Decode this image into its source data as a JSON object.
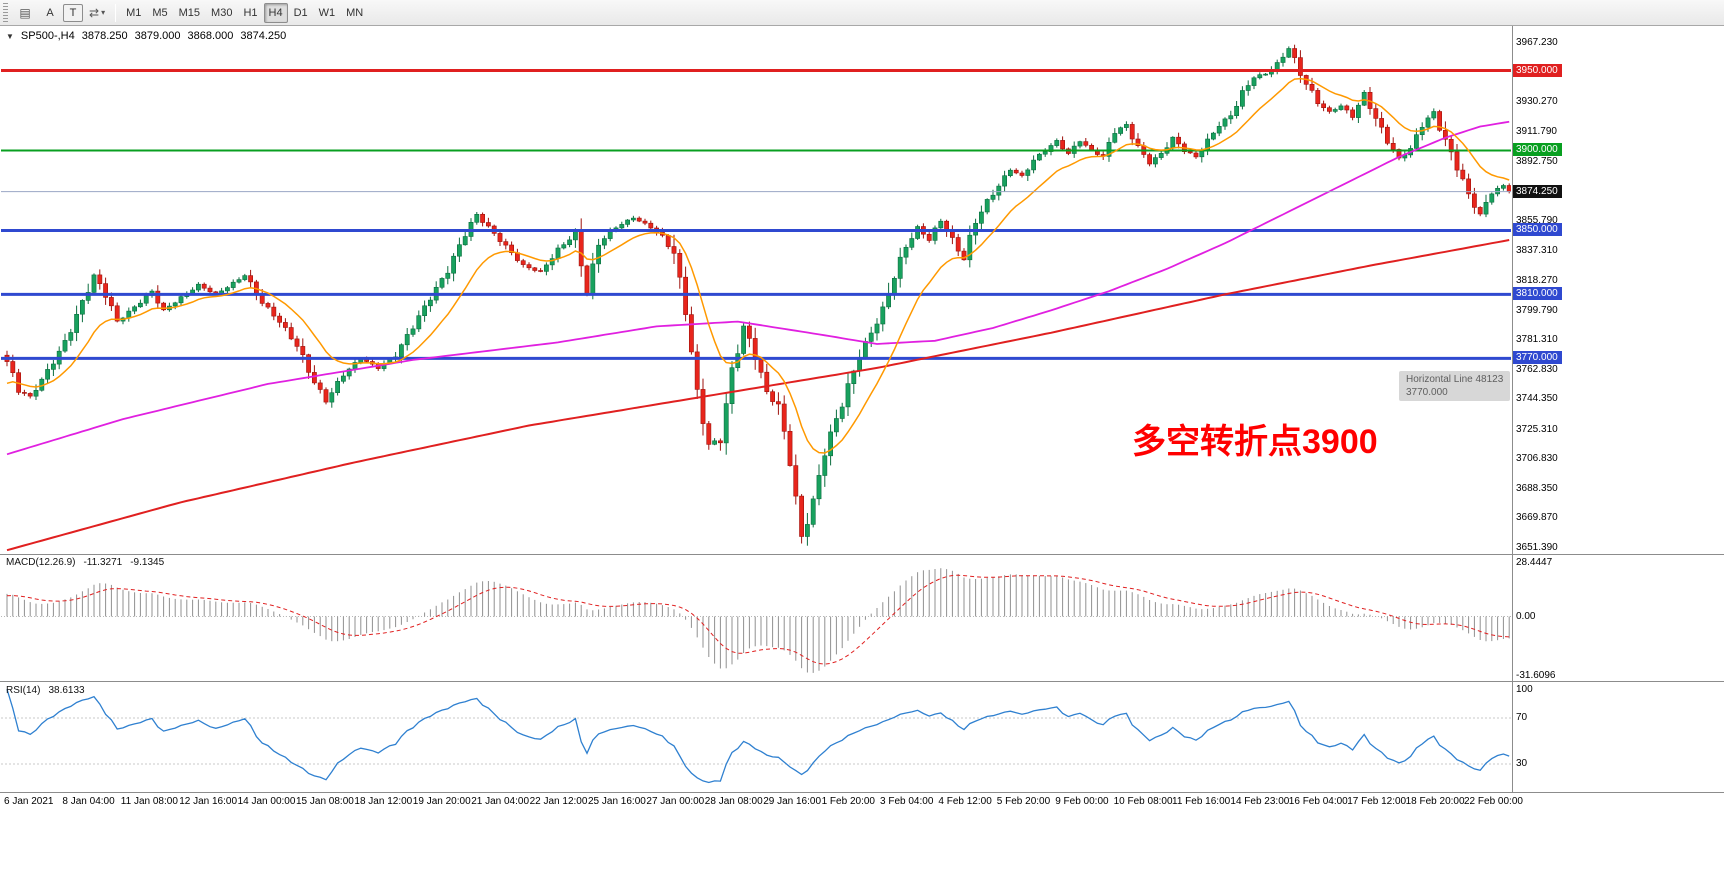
{
  "toolbar": {
    "icon_buttons": [
      {
        "name": "chart-list-icon",
        "glyph": "▤"
      },
      {
        "name": "letter-a-icon",
        "glyph": "A"
      },
      {
        "name": "letter-t-icon",
        "glyph": "T"
      },
      {
        "name": "arrows-icon",
        "glyph": "⇄"
      },
      {
        "name": "caret-down-icon",
        "glyph": "▾"
      }
    ],
    "timeframes": [
      "M1",
      "M5",
      "M15",
      "M30",
      "H1",
      "H4",
      "D1",
      "W1",
      "MN"
    ],
    "active_timeframe": "H4"
  },
  "header": {
    "collapse_icon": "▼",
    "symbol_period": "SP500-,H4",
    "open": "3878.250",
    "high": "3879.000",
    "low": "3868.000",
    "close": "3874.250"
  },
  "indicators": {
    "macd": {
      "label": "MACD(12.26.9)",
      "value_main": "-11.3271",
      "value_signal": "-9.1345",
      "scale_labels": [
        "28.4447",
        "0.00",
        "-31.6096"
      ]
    },
    "rsi": {
      "label": "RSI(14)",
      "value": "38.6133",
      "scale_labels": [
        "100",
        "70",
        "30"
      ]
    }
  },
  "annotation": {
    "text": "多空转折点3900",
    "color": "#ff0000"
  },
  "tooltip": {
    "title": "Horizontal Line 48123",
    "value": "3770.000"
  },
  "price_axis": {
    "plain_labels": [
      3967.23,
      3930.27,
      3911.79,
      3892.75,
      3855.79,
      3837.31,
      3818.27,
      3799.79,
      3781.31,
      3762.83,
      3744.35,
      3725.31,
      3706.83,
      3688.35,
      3669.87,
      3651.39
    ],
    "badges": [
      {
        "value": "3950.000",
        "level": 3950.0,
        "color": "#e02020"
      },
      {
        "value": "3900.000",
        "level": 3900.0,
        "color": "#089f20"
      },
      {
        "value": "3874.250",
        "level": 3874.25,
        "color": "#111111"
      },
      {
        "value": "3850.000",
        "level": 3850.0,
        "color": "#2f49d0"
      },
      {
        "value": "3810.000",
        "level": 3810.0,
        "color": "#2f49d0"
      },
      {
        "value": "3770.000",
        "level": 3770.0,
        "color": "#2f49d0"
      }
    ]
  },
  "time_axis": {
    "labels": [
      "6 Jan 2021",
      "8 Jan 04:00",
      "11 Jan 08:00",
      "12 Jan 16:00",
      "14 Jan 00:00",
      "15 Jan 08:00",
      "18 Jan 12:00",
      "19 Jan 20:00",
      "21 Jan 04:00",
      "22 Jan 12:00",
      "25 Jan 16:00",
      "27 Jan 00:00",
      "28 Jan 08:00",
      "29 Jan 16:00",
      "1 Feb 20:00",
      "3 Feb 04:00",
      "4 Feb 12:00",
      "5 Feb 20:00",
      "9 Feb 00:00",
      "10 Feb 08:00",
      "11 Feb 16:00",
      "14 Feb 23:00",
      "16 Feb 04:00",
      "17 Feb 12:00",
      "18 Feb 20:00",
      "22 Feb 00:00"
    ]
  },
  "chart_data": {
    "type": "candlestick",
    "symbol": "SP500-",
    "timeframe": "H4",
    "bars": 260,
    "last_price": 3874.25,
    "price_range": [
      3651.39,
      3967.23
    ],
    "macd_params": [
      12,
      26,
      9
    ],
    "macd_range": [
      -31.6096,
      28.4447
    ],
    "rsi_period": 14,
    "rsi_levels": [
      70,
      30
    ],
    "colors": {
      "up": "#18a15e",
      "up_border": "#0b6e3f",
      "down": "#e8251c",
      "down_border": "#9e120d",
      "ma_fast": "#ff9900",
      "ma_mid": "#e020e0",
      "ma_slow": "#e02020",
      "macd_hist": "#909090",
      "macd_signal": "#e02020",
      "rsi": "#2f80d0",
      "bid_line": "#9aa6c4"
    },
    "hlines": [
      {
        "level": 3950,
        "color": "#e02020",
        "width": 3
      },
      {
        "level": 3900,
        "color": "#089f20",
        "width": 2
      },
      {
        "level": 3850,
        "color": "#2f49d0",
        "width": 3
      },
      {
        "level": 3810,
        "color": "#2f49d0",
        "width": 3
      },
      {
        "level": 3770,
        "color": "#2f49d0",
        "width": 3
      }
    ],
    "price_path": [
      [
        0,
        3768
      ],
      [
        2,
        3750
      ],
      [
        4,
        3746
      ],
      [
        7,
        3762
      ],
      [
        10,
        3780
      ],
      [
        13,
        3805
      ],
      [
        15,
        3822
      ],
      [
        17,
        3810
      ],
      [
        19,
        3793
      ],
      [
        22,
        3802
      ],
      [
        25,
        3812
      ],
      [
        27,
        3800
      ],
      [
        30,
        3808
      ],
      [
        33,
        3816
      ],
      [
        36,
        3810
      ],
      [
        39,
        3817
      ],
      [
        41,
        3822
      ],
      [
        44,
        3805
      ],
      [
        47,
        3793
      ],
      [
        50,
        3778
      ],
      [
        53,
        3755
      ],
      [
        55,
        3743
      ],
      [
        58,
        3760
      ],
      [
        61,
        3770
      ],
      [
        64,
        3764
      ],
      [
        67,
        3772
      ],
      [
        70,
        3790
      ],
      [
        73,
        3808
      ],
      [
        76,
        3825
      ],
      [
        79,
        3848
      ],
      [
        81,
        3860
      ],
      [
        83,
        3852
      ],
      [
        86,
        3840
      ],
      [
        89,
        3828
      ],
      [
        92,
        3824
      ],
      [
        95,
        3838
      ],
      [
        98,
        3848
      ],
      [
        100,
        3810
      ],
      [
        102,
        3842
      ],
      [
        105,
        3852
      ],
      [
        108,
        3858
      ],
      [
        111,
        3852
      ],
      [
        113,
        3846
      ],
      [
        115,
        3836
      ],
      [
        117,
        3800
      ],
      [
        119,
        3748
      ],
      [
        121,
        3716
      ],
      [
        123,
        3720
      ],
      [
        125,
        3762
      ],
      [
        127,
        3790
      ],
      [
        129,
        3772
      ],
      [
        131,
        3748
      ],
      [
        133,
        3740
      ],
      [
        135,
        3706
      ],
      [
        137,
        3658
      ],
      [
        139,
        3680
      ],
      [
        141,
        3712
      ],
      [
        143,
        3732
      ],
      [
        145,
        3752
      ],
      [
        147,
        3772
      ],
      [
        149,
        3786
      ],
      [
        151,
        3800
      ],
      [
        153,
        3822
      ],
      [
        155,
        3840
      ],
      [
        157,
        3852
      ],
      [
        159,
        3844
      ],
      [
        161,
        3856
      ],
      [
        163,
        3844
      ],
      [
        165,
        3832
      ],
      [
        167,
        3856
      ],
      [
        169,
        3868
      ],
      [
        171,
        3878
      ],
      [
        173,
        3888
      ],
      [
        175,
        3884
      ],
      [
        177,
        3894
      ],
      [
        179,
        3900
      ],
      [
        181,
        3906
      ],
      [
        183,
        3898
      ],
      [
        185,
        3906
      ],
      [
        187,
        3900
      ],
      [
        189,
        3896
      ],
      [
        191,
        3912
      ],
      [
        193,
        3916
      ],
      [
        195,
        3902
      ],
      [
        197,
        3892
      ],
      [
        199,
        3898
      ],
      [
        201,
        3908
      ],
      [
        203,
        3900
      ],
      [
        205,
        3896
      ],
      [
        207,
        3906
      ],
      [
        209,
        3916
      ],
      [
        211,
        3922
      ],
      [
        213,
        3936
      ],
      [
        215,
        3946
      ],
      [
        217,
        3948
      ],
      [
        219,
        3954
      ],
      [
        221,
        3964
      ],
      [
        223,
        3948
      ],
      [
        226,
        3930
      ],
      [
        228,
        3924
      ],
      [
        230,
        3928
      ],
      [
        232,
        3921
      ],
      [
        234,
        3936
      ],
      [
        236,
        3920
      ],
      [
        238,
        3906
      ],
      [
        240,
        3895
      ],
      [
        242,
        3901
      ],
      [
        244,
        3916
      ],
      [
        246,
        3924
      ],
      [
        248,
        3906
      ],
      [
        250,
        3890
      ],
      [
        252,
        3872
      ],
      [
        254,
        3860
      ],
      [
        256,
        3874
      ],
      [
        258,
        3878
      ],
      [
        259,
        3874.25
      ]
    ],
    "ma_mid_path": [
      [
        0,
        3710
      ],
      [
        20,
        3732
      ],
      [
        45,
        3754
      ],
      [
        70,
        3769
      ],
      [
        95,
        3780
      ],
      [
        112,
        3790
      ],
      [
        126,
        3793
      ],
      [
        140,
        3785
      ],
      [
        150,
        3779
      ],
      [
        160,
        3781
      ],
      [
        170,
        3789
      ],
      [
        180,
        3800
      ],
      [
        190,
        3812
      ],
      [
        200,
        3826
      ],
      [
        210,
        3842
      ],
      [
        220,
        3860
      ],
      [
        230,
        3878
      ],
      [
        240,
        3896
      ],
      [
        248,
        3908
      ],
      [
        254,
        3915
      ],
      [
        259,
        3918
      ]
    ],
    "ma_slow_path": [
      [
        0,
        3650
      ],
      [
        30,
        3680
      ],
      [
        60,
        3705
      ],
      [
        90,
        3728
      ],
      [
        120,
        3746
      ],
      [
        150,
        3764
      ],
      [
        180,
        3786
      ],
      [
        210,
        3810
      ],
      [
        235,
        3828
      ],
      [
        259,
        3844
      ]
    ]
  }
}
